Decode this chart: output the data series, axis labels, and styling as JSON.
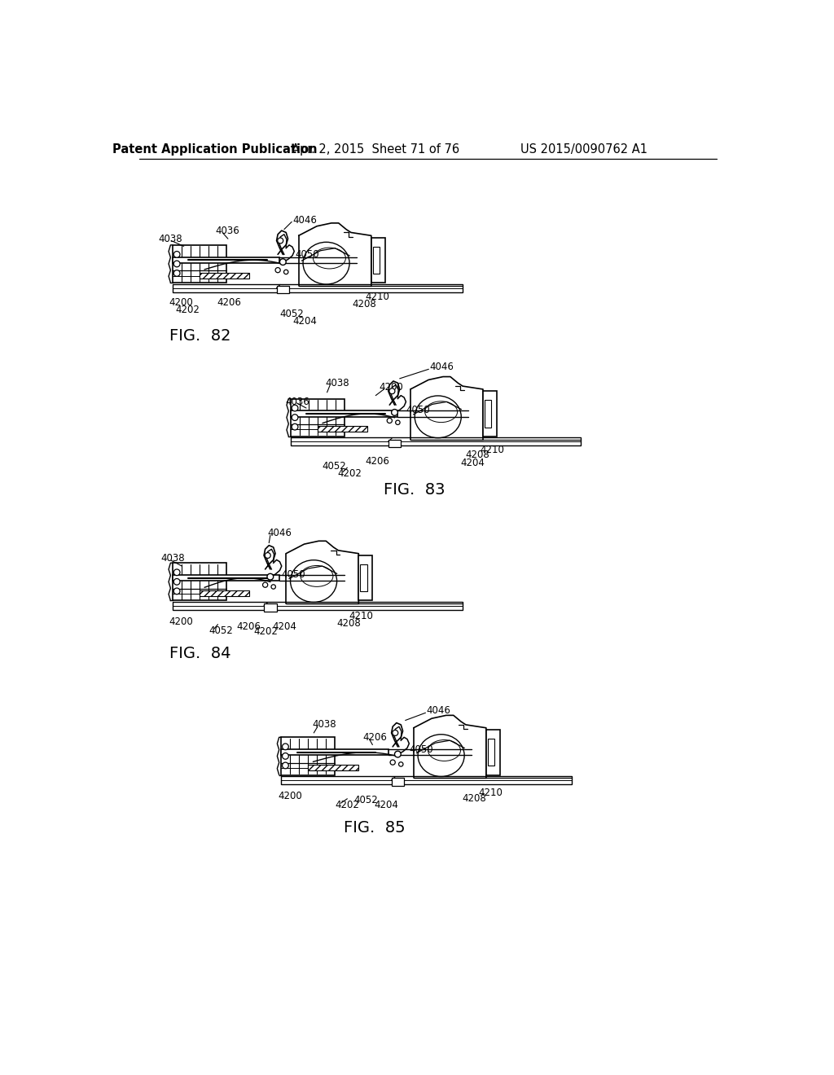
{
  "background_color": "#ffffff",
  "header1": "Patent Application Publication",
  "header2": "Apr. 2, 2015  Sheet 71 of 76",
  "header3": "US 2015/0090762 A1",
  "text_color": "#000000",
  "line_color": "#000000",
  "header_fontsize": 10.5,
  "label_fontsize": 8.5,
  "fig_label_fontsize": 14,
  "fig82": {
    "ox": 108,
    "oy": 1055,
    "scale": 1.0
  },
  "fig83": {
    "ox": 295,
    "oy": 810,
    "scale": 1.0
  },
  "fig84": {
    "ox": 108,
    "oy": 548,
    "scale": 1.0
  },
  "fig85": {
    "ox": 280,
    "oy": 270,
    "scale": 1.0
  }
}
